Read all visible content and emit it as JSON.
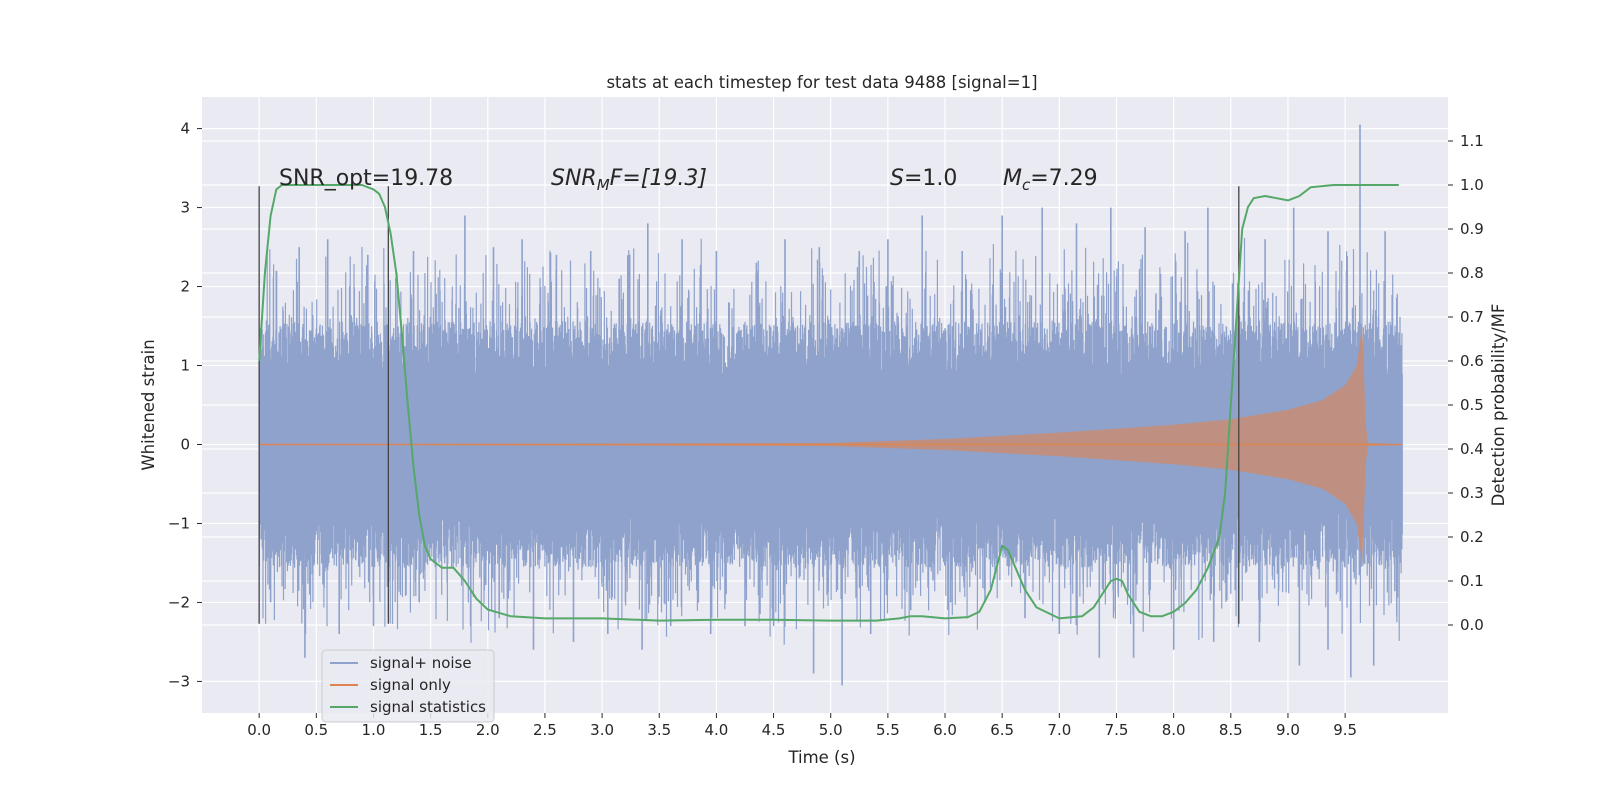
{
  "chart_data": {
    "type": "line",
    "title": "stats at each timestep for test data 9488 [signal=1]",
    "xlabel": "Time (s)",
    "ylabel": "Whitened strain",
    "ylabel_right": "Detection probability/MF",
    "xlim": [
      -0.5,
      10.4
    ],
    "ylim": [
      -3.4,
      4.4
    ],
    "ylim_right": [
      -0.2,
      1.2
    ],
    "xticks": [
      0.0,
      0.5,
      1.0,
      1.5,
      2.0,
      2.5,
      3.0,
      3.5,
      4.0,
      4.5,
      5.0,
      5.5,
      6.0,
      6.5,
      7.0,
      7.5,
      8.0,
      8.5,
      9.0,
      9.5
    ],
    "xtick_labels": [
      "0.0",
      "0.5",
      "1.0",
      "1.5",
      "2.0",
      "2.5",
      "3.0",
      "3.5",
      "4.0",
      "4.5",
      "5.0",
      "5.5",
      "6.0",
      "6.5",
      "7.0",
      "7.5",
      "8.0",
      "8.5",
      "9.0",
      "9.5"
    ],
    "yticks": [
      -3,
      -2,
      -1,
      0,
      1,
      2,
      3,
      4
    ],
    "ytick_labels": [
      "−3",
      "−2",
      "−1",
      "0",
      "1",
      "2",
      "3",
      "4"
    ],
    "yticks_right": [
      0.0,
      0.1,
      0.2,
      0.3,
      0.4,
      0.5,
      0.6,
      0.7,
      0.8,
      0.9,
      1.0,
      1.1
    ],
    "ytick_labels_right": [
      "0.0",
      "0.1",
      "0.2",
      "0.3",
      "0.4",
      "0.5",
      "0.6",
      "0.7",
      "0.8",
      "0.9",
      "1.0",
      "1.1"
    ],
    "grid": true,
    "legend_position": "lower-left",
    "annotations": {
      "snr_opt": "SNR_opt=19.78",
      "snr_mf_main": "SNR",
      "snr_mf_sub": "M",
      "snr_mf_rest": "F=[19.3]",
      "s_main": "S",
      "s_rest": "=1.0",
      "mc_main": "M",
      "mc_sub": "c",
      "mc_rest": "=7.29"
    },
    "vertical_markers": [
      {
        "x": 0.0,
        "y_range": [
          -2.27,
          3.27
        ]
      },
      {
        "x": 1.13,
        "y_range": [
          -2.27,
          3.27
        ]
      },
      {
        "x": 8.57,
        "y_range": [
          -2.27,
          3.27
        ]
      }
    ],
    "series": [
      {
        "name": "signal+ noise",
        "color": "#8ea2cc",
        "x_range": [
          0.0,
          10.0
        ],
        "envelope_abs": 1.2,
        "spike_upper": [
          [
            0.15,
            2.2
          ],
          [
            0.35,
            2.5
          ],
          [
            0.6,
            2.6
          ],
          [
            0.95,
            2.4
          ],
          [
            1.35,
            2.45
          ],
          [
            1.8,
            2.9
          ],
          [
            2.05,
            2.5
          ],
          [
            2.3,
            2.6
          ],
          [
            2.6,
            2.4
          ],
          [
            2.9,
            2.45
          ],
          [
            3.15,
            2.1
          ],
          [
            3.4,
            2.8
          ],
          [
            3.7,
            2.6
          ],
          [
            4.0,
            2.45
          ],
          [
            4.35,
            2.3
          ],
          [
            4.6,
            2.6
          ],
          [
            4.9,
            2.5
          ],
          [
            5.25,
            2.45
          ],
          [
            5.5,
            2.6
          ],
          [
            5.8,
            2.9
          ],
          [
            6.15,
            2.45
          ],
          [
            6.5,
            2.9
          ],
          [
            6.85,
            3.0
          ],
          [
            7.15,
            2.8
          ],
          [
            7.45,
            3.0
          ],
          [
            7.75,
            2.75
          ],
          [
            8.1,
            2.7
          ],
          [
            8.3,
            3.0
          ],
          [
            8.8,
            2.6
          ],
          [
            9.05,
            3.0
          ],
          [
            9.35,
            2.7
          ],
          [
            9.63,
            4.05
          ],
          [
            9.85,
            2.7
          ]
        ],
        "spike_lower": [
          [
            0.1,
            -2.0
          ],
          [
            0.4,
            -2.7
          ],
          [
            0.7,
            -2.4
          ],
          [
            1.0,
            -2.3
          ],
          [
            1.4,
            -2.0
          ],
          [
            1.85,
            -2.3
          ],
          [
            2.1,
            -2.2
          ],
          [
            2.4,
            -2.6
          ],
          [
            2.75,
            -2.5
          ],
          [
            3.05,
            -2.4
          ],
          [
            3.35,
            -2.6
          ],
          [
            3.6,
            -2.3
          ],
          [
            3.95,
            -2.4
          ],
          [
            4.25,
            -2.3
          ],
          [
            4.5,
            -2.3
          ],
          [
            4.85,
            -2.9
          ],
          [
            5.1,
            -3.05
          ],
          [
            5.35,
            -2.4
          ],
          [
            5.7,
            -2.1
          ],
          [
            6.05,
            -2.0
          ],
          [
            6.35,
            -2.0
          ],
          [
            6.7,
            -2.2
          ],
          [
            7.0,
            -2.4
          ],
          [
            7.35,
            -2.7
          ],
          [
            7.65,
            -2.7
          ],
          [
            8.0,
            -2.6
          ],
          [
            8.35,
            -2.5
          ],
          [
            8.75,
            -2.5
          ],
          [
            9.1,
            -2.8
          ],
          [
            9.35,
            -2.6
          ],
          [
            9.55,
            -2.95
          ],
          [
            9.75,
            -2.8
          ]
        ]
      },
      {
        "name": "signal only",
        "color": "#dd8452",
        "x": [
          0.0,
          5.0,
          6.0,
          7.0,
          8.0,
          8.5,
          9.0,
          9.3,
          9.5,
          9.6,
          9.65,
          9.68,
          9.7,
          10.0
        ],
        "amplitude": [
          0.0,
          0.02,
          0.07,
          0.15,
          0.25,
          0.32,
          0.44,
          0.56,
          0.75,
          1.0,
          1.5,
          0.25,
          0.02,
          0.0
        ]
      },
      {
        "name": "signal statistics",
        "color": "#55a868",
        "axis": "right",
        "x": [
          0.0,
          0.05,
          0.1,
          0.15,
          0.2,
          0.3,
          0.5,
          0.7,
          0.9,
          1.0,
          1.05,
          1.1,
          1.15,
          1.2,
          1.25,
          1.3,
          1.35,
          1.4,
          1.45,
          1.5,
          1.6,
          1.7,
          1.8,
          1.9,
          2.0,
          2.2,
          2.5,
          3.0,
          3.5,
          4.0,
          4.5,
          5.0,
          5.4,
          5.6,
          5.7,
          5.8,
          6.0,
          6.2,
          6.3,
          6.4,
          6.45,
          6.5,
          6.55,
          6.6,
          6.7,
          6.8,
          7.0,
          7.2,
          7.3,
          7.4,
          7.45,
          7.5,
          7.55,
          7.6,
          7.7,
          7.8,
          7.9,
          8.0,
          8.1,
          8.2,
          8.3,
          8.4,
          8.45,
          8.5,
          8.55,
          8.6,
          8.65,
          8.7,
          8.8,
          8.9,
          9.0,
          9.1,
          9.2,
          9.4,
          9.97
        ],
        "y": [
          0.6,
          0.8,
          0.93,
          0.99,
          1.0,
          1.0,
          1.0,
          1.0,
          1.0,
          0.99,
          0.98,
          0.95,
          0.89,
          0.8,
          0.66,
          0.5,
          0.36,
          0.25,
          0.18,
          0.15,
          0.13,
          0.13,
          0.1,
          0.06,
          0.035,
          0.02,
          0.015,
          0.015,
          0.01,
          0.012,
          0.012,
          0.01,
          0.01,
          0.015,
          0.02,
          0.02,
          0.015,
          0.018,
          0.03,
          0.08,
          0.13,
          0.18,
          0.17,
          0.14,
          0.08,
          0.04,
          0.015,
          0.02,
          0.04,
          0.08,
          0.1,
          0.105,
          0.1,
          0.07,
          0.03,
          0.02,
          0.02,
          0.03,
          0.05,
          0.08,
          0.13,
          0.2,
          0.3,
          0.5,
          0.7,
          0.9,
          0.95,
          0.97,
          0.975,
          0.97,
          0.965,
          0.975,
          0.995,
          1.0,
          1.0
        ]
      }
    ]
  }
}
